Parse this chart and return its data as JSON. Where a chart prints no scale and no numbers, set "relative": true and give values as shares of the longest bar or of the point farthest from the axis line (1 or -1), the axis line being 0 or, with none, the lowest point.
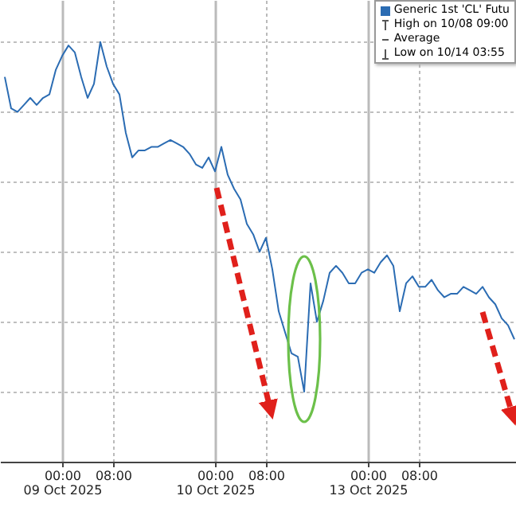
{
  "chart_data": {
    "type": "line",
    "relative": true,
    "grid": true,
    "legend": "top right",
    "categories": [
      null,
      null,
      null,
      null,
      null,
      null,
      null,
      null,
      null,
      "00:00\n09 Oct 2025",
      null,
      null,
      null,
      null,
      null,
      null,
      null,
      "08:00",
      null,
      null,
      null,
      null,
      null,
      null,
      null,
      null,
      null,
      null,
      null,
      null,
      null,
      null,
      null,
      "00:00\n10 Oct 2025",
      null,
      null,
      null,
      null,
      null,
      null,
      null,
      "08:00",
      null,
      null,
      null,
      null,
      null,
      null,
      null,
      null,
      null,
      null,
      null,
      null,
      null,
      null,
      null,
      "00:00\n13 Oct 2025",
      null,
      null,
      null,
      null,
      null,
      null,
      null,
      "08:00",
      null,
      null,
      null,
      null,
      null,
      null,
      null,
      null,
      null,
      null,
      null,
      null,
      null,
      null,
      null
    ],
    "annotations": [
      "High on 10/08 09:00",
      "Average",
      "Low on 10/14 03:55"
    ],
    "series": [
      {
        "name": "Generic 1st 'CL' Futu",
        "color": "#2b6cb3",
        "values": [
          0.9,
          0.81,
          0.8,
          0.82,
          0.84,
          0.82,
          0.84,
          0.85,
          0.92,
          0.96,
          0.99,
          0.97,
          0.9,
          0.84,
          0.88,
          1,
          0.93,
          0.88,
          0.85,
          0.74,
          0.67,
          0.69,
          0.69,
          0.7,
          0.7,
          0.71,
          0.72,
          0.71,
          0.7,
          0.68,
          0.65,
          0.64,
          0.67,
          0.63,
          0.7,
          0.62,
          0.58,
          0.55,
          0.48,
          0.45,
          0.4,
          0.44,
          0.35,
          0.23,
          0.17,
          0.11,
          0.1,
          0,
          0.31,
          0.2,
          0.26,
          0.34,
          0.36,
          0.34,
          0.31,
          0.31,
          0.34,
          0.35,
          0.34,
          0.37,
          0.39,
          0.36,
          0.23,
          0.31,
          0.33,
          0.3,
          0.3,
          0.32,
          0.29,
          0.27,
          0.28,
          0.28,
          0.3,
          0.29,
          0.28,
          0.3,
          0.27,
          0.25,
          0.21,
          0.19,
          0.15
        ]
      }
    ]
  }
}
